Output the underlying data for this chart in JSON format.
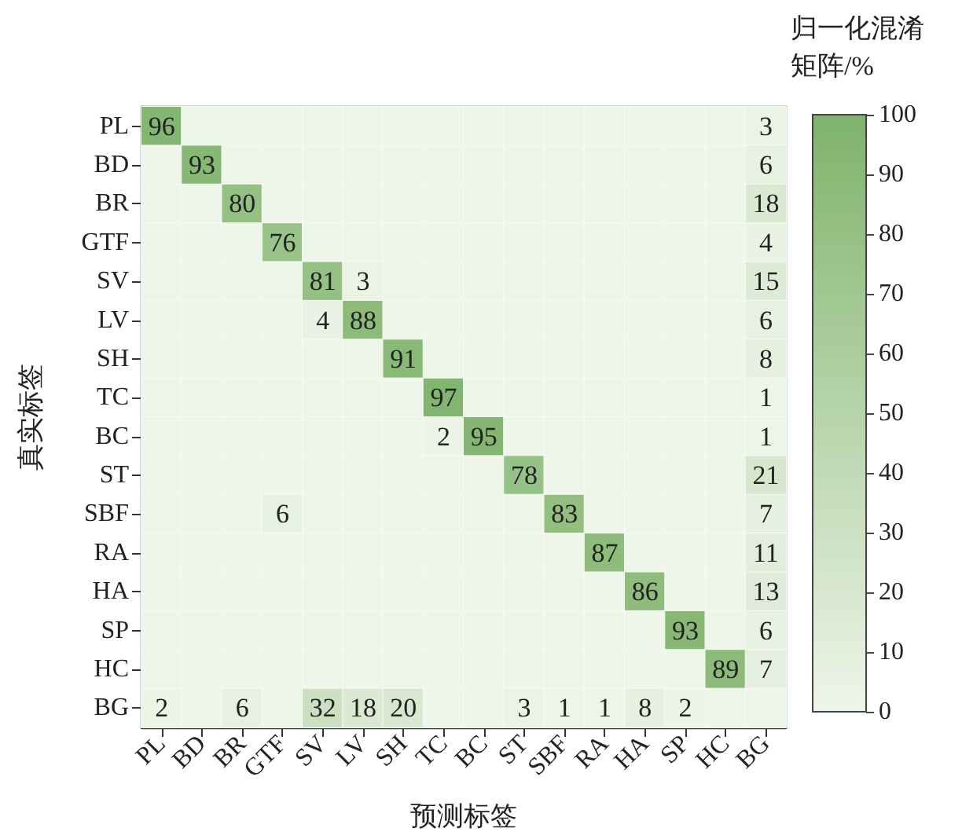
{
  "chart_data": {
    "type": "heatmap",
    "xlabel": "预测标签",
    "ylabel": "真实标签",
    "clabel": "归一化混淆矩阵/%",
    "categories": [
      "PL",
      "BD",
      "BR",
      "GTF",
      "SV",
      "LV",
      "SH",
      "TC",
      "BC",
      "ST",
      "SBF",
      "RA",
      "HA",
      "SP",
      "HC",
      "BG"
    ],
    "y_categories": [
      "PL",
      "BD",
      "BR",
      "GTF",
      "SV",
      "LV",
      "SH",
      "TC",
      "BC",
      "ST",
      "SBF",
      "RA",
      "HA",
      "SP",
      "HC",
      "BG"
    ],
    "cells": [
      [
        96,
        0,
        0,
        0,
        0,
        0,
        0,
        0,
        0,
        0,
        0,
        0,
        0,
        0,
        0,
        3
      ],
      [
        0,
        93,
        0,
        0,
        0,
        0,
        0,
        0,
        0,
        0,
        0,
        0,
        0,
        0,
        0,
        6
      ],
      [
        0,
        0,
        80,
        0,
        0,
        0,
        0,
        0,
        0,
        0,
        0,
        0,
        0,
        0,
        0,
        18
      ],
      [
        0,
        0,
        0,
        76,
        0,
        0,
        0,
        0,
        0,
        0,
        0,
        0,
        0,
        0,
        0,
        4
      ],
      [
        0,
        0,
        0,
        0,
        81,
        3,
        0,
        0,
        0,
        0,
        0,
        0,
        0,
        0,
        0,
        15
      ],
      [
        0,
        0,
        0,
        0,
        4,
        88,
        0,
        0,
        0,
        0,
        0,
        0,
        0,
        0,
        0,
        6
      ],
      [
        0,
        0,
        0,
        0,
        0,
        0,
        91,
        0,
        0,
        0,
        0,
        0,
        0,
        0,
        0,
        8
      ],
      [
        0,
        0,
        0,
        0,
        0,
        0,
        0,
        97,
        0,
        0,
        0,
        0,
        0,
        0,
        0,
        1
      ],
      [
        0,
        0,
        0,
        0,
        0,
        0,
        0,
        2,
        95,
        0,
        0,
        0,
        0,
        0,
        0,
        1
      ],
      [
        0,
        0,
        0,
        0,
        0,
        0,
        0,
        0,
        0,
        78,
        0,
        0,
        0,
        0,
        0,
        21
      ],
      [
        0,
        0,
        0,
        6,
        0,
        0,
        0,
        0,
        0,
        0,
        83,
        0,
        0,
        0,
        0,
        7
      ],
      [
        0,
        0,
        0,
        0,
        0,
        0,
        0,
        0,
        0,
        0,
        0,
        87,
        0,
        0,
        0,
        11
      ],
      [
        0,
        0,
        0,
        0,
        0,
        0,
        0,
        0,
        0,
        0,
        0,
        0,
        86,
        0,
        0,
        13
      ],
      [
        0,
        0,
        0,
        0,
        0,
        0,
        0,
        0,
        0,
        0,
        0,
        0,
        0,
        93,
        0,
        6
      ],
      [
        0,
        0,
        0,
        0,
        0,
        0,
        0,
        0,
        0,
        0,
        0,
        0,
        0,
        0,
        89,
        7
      ],
      [
        2,
        0,
        6,
        0,
        32,
        18,
        20,
        0,
        0,
        3,
        1,
        1,
        8,
        2,
        0,
        0
      ]
    ],
    "cell_labels": [
      [
        "96",
        null,
        null,
        null,
        null,
        null,
        null,
        null,
        null,
        null,
        null,
        null,
        null,
        null,
        null,
        "3"
      ],
      [
        null,
        "93",
        null,
        null,
        null,
        null,
        null,
        null,
        null,
        null,
        null,
        null,
        null,
        null,
        null,
        "6"
      ],
      [
        null,
        null,
        "80",
        null,
        null,
        null,
        null,
        null,
        null,
        null,
        null,
        null,
        null,
        null,
        null,
        "18"
      ],
      [
        null,
        null,
        null,
        "76",
        null,
        null,
        null,
        null,
        null,
        null,
        null,
        null,
        null,
        null,
        null,
        "4"
      ],
      [
        null,
        null,
        null,
        null,
        "81",
        "3",
        null,
        null,
        null,
        null,
        null,
        null,
        null,
        null,
        null,
        "15"
      ],
      [
        null,
        null,
        null,
        null,
        "4",
        "88",
        null,
        null,
        null,
        null,
        null,
        null,
        null,
        null,
        null,
        "6"
      ],
      [
        null,
        null,
        null,
        null,
        null,
        null,
        "91",
        null,
        null,
        null,
        null,
        null,
        null,
        null,
        null,
        "8"
      ],
      [
        null,
        null,
        null,
        null,
        null,
        null,
        null,
        "97",
        null,
        null,
        null,
        null,
        null,
        null,
        null,
        "1"
      ],
      [
        null,
        null,
        null,
        null,
        null,
        null,
        null,
        "2",
        "95",
        null,
        null,
        null,
        null,
        null,
        null,
        "1"
      ],
      [
        null,
        null,
        null,
        null,
        null,
        null,
        null,
        null,
        null,
        "78",
        null,
        null,
        null,
        null,
        null,
        "21"
      ],
      [
        null,
        null,
        null,
        "6",
        null,
        null,
        null,
        null,
        null,
        null,
        "83",
        null,
        null,
        null,
        null,
        "7"
      ],
      [
        null,
        null,
        null,
        null,
        null,
        null,
        null,
        null,
        null,
        null,
        null,
        "87",
        null,
        null,
        null,
        "11"
      ],
      [
        null,
        null,
        null,
        null,
        null,
        null,
        null,
        null,
        null,
        null,
        null,
        null,
        "86",
        null,
        null,
        "13"
      ],
      [
        null,
        null,
        null,
        null,
        null,
        null,
        null,
        null,
        null,
        null,
        null,
        null,
        null,
        "93",
        null,
        "6"
      ],
      [
        null,
        null,
        null,
        null,
        null,
        null,
        null,
        null,
        null,
        null,
        null,
        null,
        null,
        null,
        "89",
        "7"
      ],
      [
        "2",
        null,
        "6",
        null,
        "32",
        "18",
        "20",
        null,
        null,
        "3",
        "1",
        "1",
        "8",
        "2",
        null,
        null
      ]
    ],
    "clim": [
      0,
      100
    ],
    "cticks": [
      0,
      10,
      20,
      30,
      40,
      50,
      60,
      70,
      80,
      90,
      100
    ]
  }
}
